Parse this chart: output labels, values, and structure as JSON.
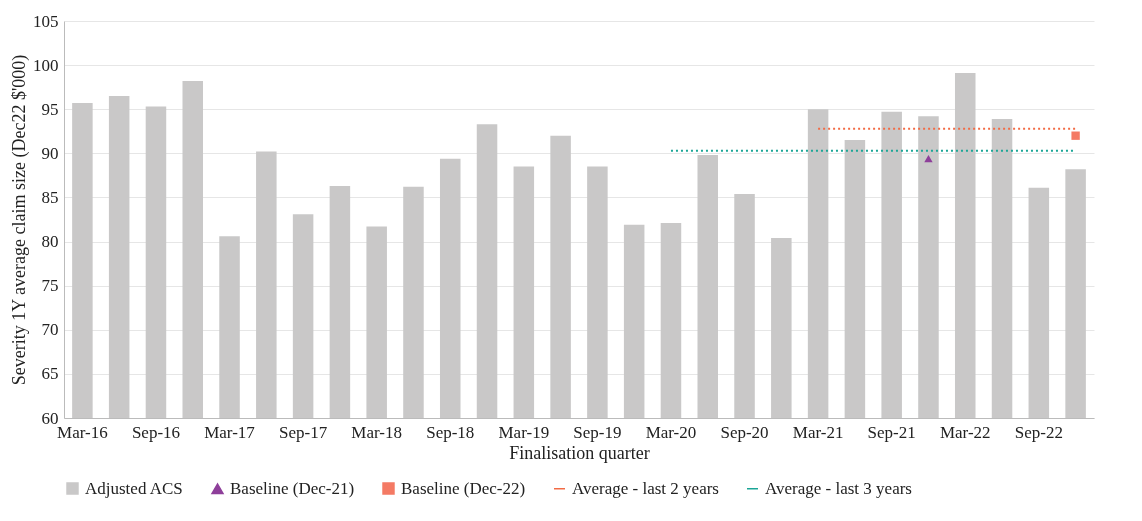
{
  "chart_data": {
    "type": "bar",
    "categories": [
      "Mar-16",
      null,
      "Sep-16",
      null,
      "Mar-17",
      null,
      "Sep-17",
      null,
      "Mar-18",
      null,
      "Sep-18",
      null,
      "Mar-19",
      null,
      "Sep-19",
      null,
      "Mar-20",
      null,
      "Sep-20",
      null,
      "Mar-21",
      null,
      "Sep-21",
      null,
      "Mar-22",
      null,
      "Sep-22",
      null
    ],
    "xlabel": "Finalisation quarter",
    "ylabel": "Severity 1Y average claim size (Dec22 $'000)",
    "ylim": [
      60,
      105
    ],
    "yticks": [
      60,
      65,
      70,
      75,
      80,
      85,
      90,
      95,
      100,
      105
    ],
    "grid": "y",
    "legend": "bottom",
    "series": [
      {
        "name": "Adjusted ACS",
        "color": "#c9c8c8",
        "values": [
          95.7,
          96.5,
          95.3,
          98.2,
          80.6,
          90.2,
          83.1,
          86.3,
          81.7,
          86.2,
          89.4,
          93.3,
          88.5,
          92.0,
          88.5,
          81.9,
          82.1,
          89.8,
          85.4,
          80.4,
          95.0,
          91.5,
          94.7,
          94.2,
          99.1,
          93.9,
          86.1,
          88.2
        ]
      },
      {
        "name": "Baseline (Dec-21)",
        "type": "scatter",
        "marker": "triangle",
        "color": "#8e3f9a",
        "values": [
          null,
          null,
          null,
          null,
          null,
          null,
          null,
          null,
          null,
          null,
          null,
          null,
          null,
          null,
          null,
          null,
          null,
          null,
          null,
          null,
          null,
          null,
          null,
          89.4,
          null,
          null,
          null,
          null
        ]
      },
      {
        "name": "Baseline (Dec-22)",
        "type": "scatter",
        "marker": "square",
        "color": "#f47a64",
        "values": [
          null,
          null,
          null,
          null,
          null,
          null,
          null,
          null,
          null,
          null,
          null,
          null,
          null,
          null,
          null,
          null,
          null,
          null,
          null,
          null,
          null,
          null,
          null,
          null,
          null,
          null,
          null,
          92.0
        ]
      },
      {
        "name": "Average - last 2 years",
        "type": "line",
        "line_style": "dotted",
        "color": "#f26b45",
        "values": [
          null,
          null,
          null,
          null,
          null,
          null,
          null,
          null,
          null,
          null,
          null,
          null,
          null,
          null,
          null,
          null,
          null,
          null,
          null,
          null,
          92.8,
          92.8,
          92.8,
          92.8,
          92.8,
          92.8,
          92.8,
          92.8
        ]
      },
      {
        "name": "Average - last 3 years",
        "type": "line",
        "line_style": "dotted",
        "color": "#1aa596",
        "values": [
          null,
          null,
          null,
          null,
          null,
          null,
          null,
          null,
          null,
          null,
          null,
          null,
          null,
          null,
          null,
          null,
          90.3,
          90.3,
          90.3,
          90.3,
          90.3,
          90.3,
          90.3,
          90.3,
          90.3,
          90.3,
          90.3,
          90.3
        ]
      }
    ]
  }
}
